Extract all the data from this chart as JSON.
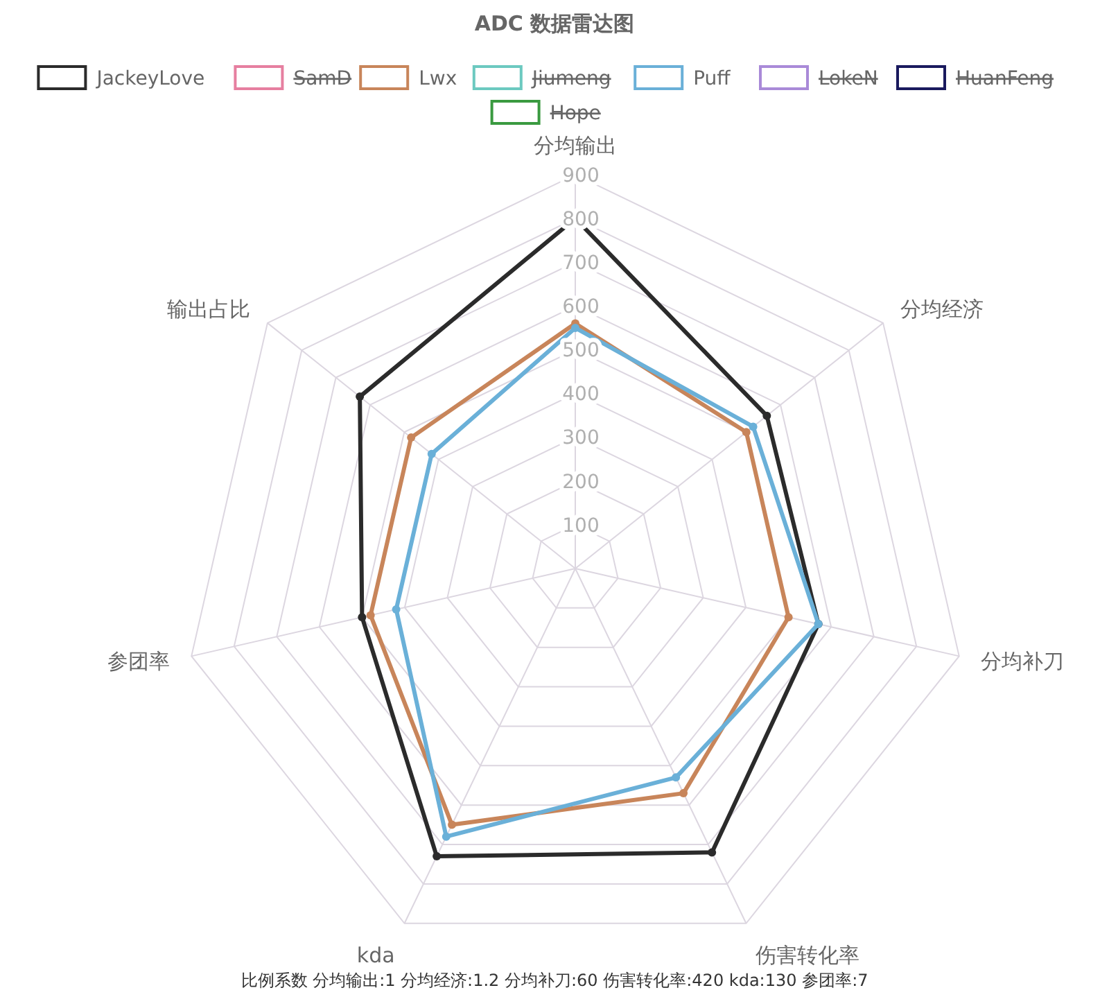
{
  "chart_data": {
    "type": "radar",
    "title": "ADC 数据雷达图",
    "categories": [
      "分均输出",
      "分均经济",
      "分均补刀",
      "伤害转化率",
      "kda",
      "参团率",
      "输出占比"
    ],
    "series": [
      {
        "name": "JackeyLove",
        "color": "#2b2b2b",
        "values": [
          800,
          560,
          570,
          720,
          730,
          500,
          630
        ]
      },
      {
        "name": "Lwx",
        "color": "#c8855a",
        "values": [
          560,
          500,
          500,
          570,
          650,
          480,
          480
        ]
      },
      {
        "name": "Puff",
        "color": "#6ab0d8",
        "values": [
          550,
          520,
          570,
          530,
          680,
          420,
          420
        ]
      }
    ],
    "ylim": [
      0,
      900
    ],
    "yticks": [
      100,
      200,
      300,
      400,
      500,
      600,
      700,
      800,
      900
    ],
    "grid": true,
    "legend": "top",
    "marker": "circle",
    "annotations": [
      "SamD",
      "Jiumeng",
      "LokeN",
      "HuanFeng",
      "Hope",
      "比例系数 分均输出:1 分均经济:1.2 分均补刀:60 伤害转化率:420 kda:130 参团率:7"
    ]
  }
}
